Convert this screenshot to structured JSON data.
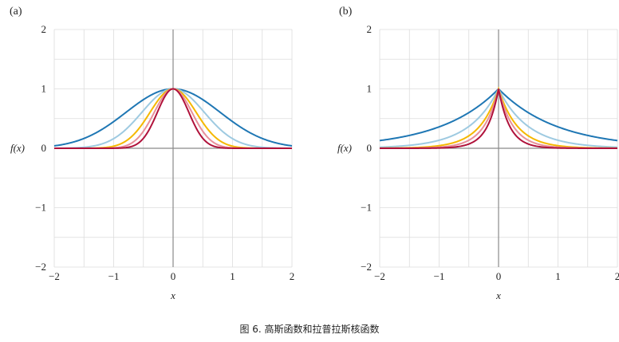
{
  "caption": "图 6. 高斯函数和拉普拉斯核函数",
  "colors": [
    "#1f77b4",
    "#9ecae1",
    "#f5b800",
    "#e8909a",
    "#b0123b"
  ],
  "chart_data": [
    {
      "panel_label": "(a)",
      "type": "line",
      "xlabel": "x",
      "ylabel": "f(x)",
      "xlim": [
        -2,
        2
      ],
      "ylim": [
        -2,
        2
      ],
      "xticks": [
        "−2",
        "−1",
        "0",
        "1",
        "2"
      ],
      "yticks": [
        "2",
        "1",
        "0",
        "−1",
        "−2"
      ],
      "grid": true,
      "function": "gaussian exp(-x^2/w)",
      "series": [
        {
          "x": [
            -2,
            -1.5,
            -1,
            -0.5,
            0,
            0.5,
            1,
            1.5,
            2
          ],
          "values": [
            0.03,
            0.15,
            0.45,
            0.82,
            1.0,
            0.82,
            0.45,
            0.15,
            0.03
          ]
        },
        {
          "x": [
            -2,
            -1.5,
            -1,
            -0.5,
            0,
            0.5,
            1,
            1.5,
            2
          ],
          "values": [
            0.0,
            0.04,
            0.22,
            0.68,
            1.0,
            0.68,
            0.22,
            0.04,
            0.0
          ]
        },
        {
          "x": [
            -2,
            -1.5,
            -1,
            -0.5,
            0,
            0.5,
            1,
            1.5,
            2
          ],
          "values": [
            0.0,
            0.01,
            0.1,
            0.55,
            1.0,
            0.55,
            0.1,
            0.01,
            0.0
          ]
        },
        {
          "x": [
            -2,
            -1.5,
            -1,
            -0.5,
            0,
            0.5,
            1,
            1.5,
            2
          ],
          "values": [
            0.0,
            0.0,
            0.05,
            0.47,
            1.0,
            0.47,
            0.05,
            0.0,
            0.0
          ]
        },
        {
          "x": [
            -2,
            -1.5,
            -1,
            -0.5,
            0,
            0.5,
            1,
            1.5,
            2
          ],
          "values": [
            0.0,
            0.0,
            0.02,
            0.37,
            1.0,
            0.37,
            0.02,
            0.0,
            0.0
          ]
        }
      ]
    },
    {
      "panel_label": "(b)",
      "type": "line",
      "xlabel": "x",
      "ylabel": "f(x)",
      "xlim": [
        -2,
        2
      ],
      "ylim": [
        -2,
        2
      ],
      "xticks": [
        "−2",
        "−1",
        "0",
        "1",
        "2"
      ],
      "yticks": [
        "2",
        "1",
        "0",
        "−1",
        "−2"
      ],
      "grid": true,
      "function": "laplacian exp(-|x|/w)",
      "series": [
        {
          "x": [
            -2,
            -1.5,
            -1,
            -0.5,
            0,
            0.5,
            1,
            1.5,
            2
          ],
          "values": [
            0.13,
            0.22,
            0.37,
            0.61,
            1.0,
            0.61,
            0.37,
            0.22,
            0.13
          ]
        },
        {
          "x": [
            -2,
            -1.5,
            -1,
            -0.5,
            0,
            0.5,
            1,
            1.5,
            2
          ],
          "values": [
            0.02,
            0.05,
            0.14,
            0.37,
            1.0,
            0.37,
            0.14,
            0.05,
            0.02
          ]
        },
        {
          "x": [
            -2,
            -1.5,
            -1,
            -0.5,
            0,
            0.5,
            1,
            1.5,
            2
          ],
          "values": [
            0.0,
            0.01,
            0.05,
            0.22,
            1.0,
            0.22,
            0.05,
            0.01,
            0.0
          ]
        },
        {
          "x": [
            -2,
            -1.5,
            -1,
            -0.5,
            0,
            0.5,
            1,
            1.5,
            2
          ],
          "values": [
            0.0,
            0.0,
            0.02,
            0.14,
            1.0,
            0.14,
            0.02,
            0.0,
            0.0
          ]
        },
        {
          "x": [
            -2,
            -1.5,
            -1,
            -0.5,
            0,
            0.5,
            1,
            1.5,
            2
          ],
          "values": [
            0.0,
            0.0,
            0.01,
            0.08,
            1.0,
            0.08,
            0.01,
            0.0,
            0.0
          ]
        }
      ]
    }
  ]
}
